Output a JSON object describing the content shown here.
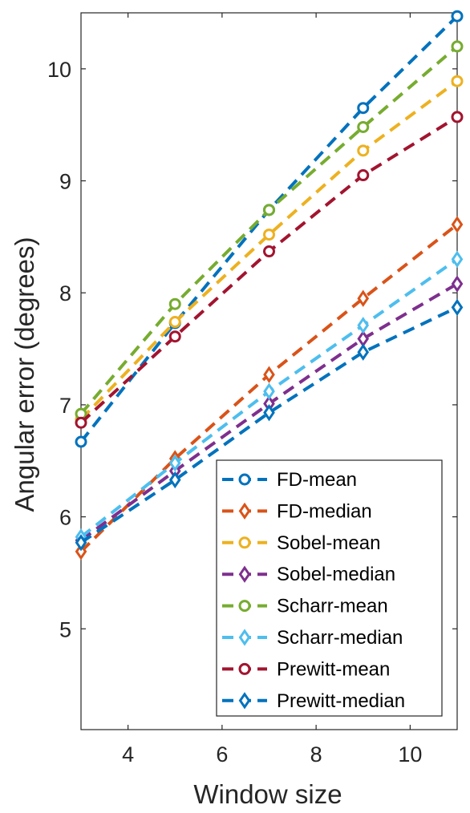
{
  "chart_data": {
    "type": "line",
    "xlabel": "Window size",
    "ylabel": "Angular error (degrees)",
    "xlim": [
      3,
      11
    ],
    "ylim": [
      4.1,
      10.5
    ],
    "x": [
      3,
      5,
      7,
      9,
      11
    ],
    "xticks": [
      4,
      6,
      8,
      10
    ],
    "yticks": [
      5,
      6,
      7,
      8,
      9,
      10
    ],
    "grid": false,
    "legend_position": "bottom-right",
    "series": [
      {
        "name": "FD-mean",
        "values": [
          6.67,
          7.73,
          8.74,
          9.65,
          10.47
        ],
        "color": "#0072BD",
        "marker": "circle"
      },
      {
        "name": "FD-median",
        "values": [
          5.69,
          6.52,
          7.27,
          7.95,
          8.61
        ],
        "color": "#D95319",
        "marker": "diamond"
      },
      {
        "name": "Sobel-mean",
        "values": [
          6.87,
          7.74,
          8.52,
          9.27,
          9.89
        ],
        "color": "#EDB120",
        "marker": "circle"
      },
      {
        "name": "Sobel-median",
        "values": [
          5.79,
          6.41,
          7.01,
          7.59,
          8.08
        ],
        "color": "#7E2F8E",
        "marker": "diamond"
      },
      {
        "name": "Scharr-mean",
        "values": [
          6.92,
          7.9,
          8.74,
          9.48,
          10.2
        ],
        "color": "#77AC30",
        "marker": "circle"
      },
      {
        "name": "Scharr-median",
        "values": [
          5.82,
          6.48,
          7.12,
          7.71,
          8.3
        ],
        "color": "#4DBEEE",
        "marker": "diamond"
      },
      {
        "name": "Prewitt-mean",
        "values": [
          6.84,
          7.61,
          8.37,
          9.05,
          9.57
        ],
        "color": "#A2142F",
        "marker": "circle"
      },
      {
        "name": "Prewitt-median",
        "values": [
          5.77,
          6.33,
          6.93,
          7.47,
          7.87
        ],
        "color": "#0072BD",
        "marker": "diamond"
      }
    ]
  }
}
